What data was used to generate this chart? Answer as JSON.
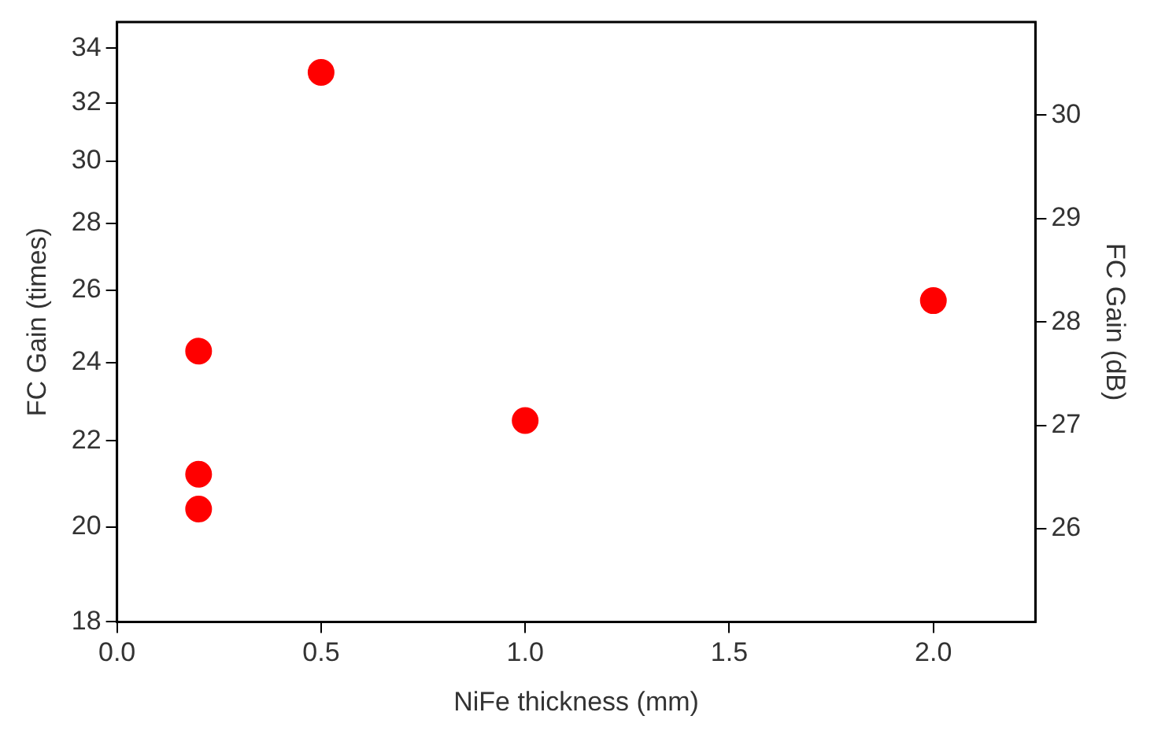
{
  "chart_data": {
    "type": "scatter",
    "xlabel": "NiFe thickness (mm)",
    "ylabel": "FC Gain (times)",
    "y2label": "FC Gain (dB)",
    "x": [
      0.2,
      0.2,
      0.2,
      0.5,
      1.0,
      2.0
    ],
    "series": [
      {
        "color": "#ff0000",
        "values": [
          24.3,
          21.2,
          20.4,
          33.1,
          22.5,
          25.7
        ]
      }
    ],
    "xlim": [
      0,
      2.25
    ],
    "xticks": [
      {
        "value": 0,
        "label": "0.0"
      },
      0.5,
      {
        "value": 1,
        "label": "1.0"
      },
      1.5,
      {
        "value": 2,
        "label": "2.0"
      }
    ],
    "ylim": [
      18,
      35
    ],
    "yticks": [
      18,
      20,
      22,
      24,
      26,
      28,
      30,
      32,
      34
    ],
    "log": "y",
    "y2lim": [
      25.1,
      30.9
    ],
    "y2ticks": [
      26,
      27,
      28,
      29,
      30
    ],
    "marker": "circle",
    "grid": false,
    "legend": false
  }
}
